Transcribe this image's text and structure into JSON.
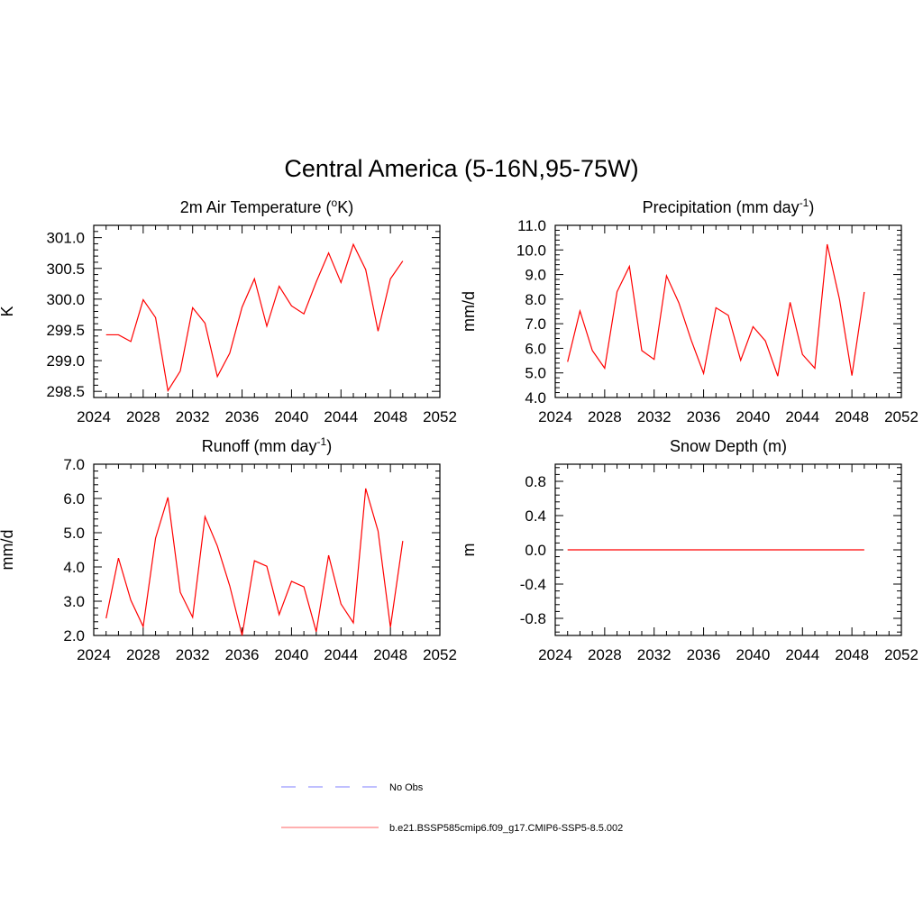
{
  "figure": {
    "title": "Central America (5-16N,95-75W)"
  },
  "legend": {
    "items": [
      {
        "label": "No Obs",
        "color": "#9999ff",
        "style": "dashed"
      },
      {
        "label": "b.e21.BSSP585cmip6.f09_g17.CMIP6-SSP5-8.5.002",
        "color": "#ff8080",
        "style": "solid"
      }
    ]
  },
  "colors": {
    "series": "#ff0000",
    "frame": "#000000"
  },
  "chart_data": [
    {
      "type": "line",
      "title": "2m Air Temperature (",
      "title_sup": "o",
      "title_after": "K)",
      "ylabel": "K",
      "xlim": [
        2024,
        2052
      ],
      "ylim": [
        298.4,
        301.2
      ],
      "xticks": [
        2024,
        2028,
        2032,
        2036,
        2040,
        2044,
        2048,
        2052
      ],
      "xtick_labels": [
        "2024",
        "2028",
        "2032",
        "2036",
        "2040",
        "2044",
        "2048",
        "2052"
      ],
      "yticks": [
        298.5,
        299.0,
        299.5,
        300.0,
        300.5,
        301.0
      ],
      "ytick_labels": [
        "298.5",
        "299.0",
        "299.5",
        "300.0",
        "300.5",
        "301.0"
      ],
      "x": [
        2025,
        2026,
        2027,
        2028,
        2029,
        2030,
        2031,
        2032,
        2033,
        2034,
        2035,
        2036,
        2037,
        2038,
        2039,
        2040,
        2041,
        2042,
        2043,
        2044,
        2045,
        2046,
        2047,
        2048,
        2049
      ],
      "series": [
        {
          "values": [
            299.42,
            299.42,
            299.31,
            299.99,
            299.7,
            298.51,
            298.83,
            299.86,
            299.61,
            298.74,
            299.12,
            299.87,
            300.33,
            299.56,
            300.21,
            299.89,
            299.76,
            300.28,
            300.75,
            300.27,
            300.89,
            300.48,
            299.48,
            300.33,
            300.62
          ]
        }
      ]
    },
    {
      "type": "line",
      "title": "Precipitation (mm day",
      "title_sup": "-1",
      "title_after": ")",
      "ylabel": "mm/d",
      "xlim": [
        2024,
        2052
      ],
      "ylim": [
        4.0,
        11.0
      ],
      "xticks": [
        2024,
        2028,
        2032,
        2036,
        2040,
        2044,
        2048,
        2052
      ],
      "xtick_labels": [
        "2024",
        "2028",
        "2032",
        "2036",
        "2040",
        "2044",
        "2048",
        "2052"
      ],
      "yticks": [
        4.0,
        5.0,
        6.0,
        7.0,
        8.0,
        9.0,
        10.0,
        11.0
      ],
      "ytick_labels": [
        "4.0",
        "5.0",
        "6.0",
        "7.0",
        "8.0",
        "9.0",
        "10.0",
        "11.0"
      ],
      "x": [
        2025,
        2026,
        2027,
        2028,
        2029,
        2030,
        2031,
        2032,
        2033,
        2034,
        2035,
        2036,
        2037,
        2038,
        2039,
        2040,
        2041,
        2042,
        2043,
        2044,
        2045,
        2046,
        2047,
        2048,
        2049
      ],
      "series": [
        {
          "values": [
            5.45,
            7.52,
            5.91,
            5.19,
            8.3,
            9.33,
            5.91,
            5.55,
            8.95,
            7.85,
            6.33,
            4.98,
            7.65,
            7.34,
            5.51,
            6.88,
            6.3,
            4.87,
            7.87,
            5.75,
            5.19,
            10.23,
            7.98,
            4.89,
            8.29
          ]
        }
      ]
    },
    {
      "type": "line",
      "title": "Runoff (mm day",
      "title_sup": "-1",
      "title_after": ")",
      "ylabel": "mm/d",
      "xlim": [
        2024,
        2052
      ],
      "ylim": [
        2.0,
        7.0
      ],
      "xticks": [
        2024,
        2028,
        2032,
        2036,
        2040,
        2044,
        2048,
        2052
      ],
      "xtick_labels": [
        "2024",
        "2028",
        "2032",
        "2036",
        "2040",
        "2044",
        "2048",
        "2052"
      ],
      "yticks": [
        2.0,
        3.0,
        4.0,
        5.0,
        6.0,
        7.0
      ],
      "ytick_labels": [
        "2.0",
        "3.0",
        "4.0",
        "5.0",
        "6.0",
        "7.0"
      ],
      "x": [
        2025,
        2026,
        2027,
        2028,
        2029,
        2030,
        2031,
        2032,
        2033,
        2034,
        2035,
        2036,
        2037,
        2038,
        2039,
        2040,
        2041,
        2042,
        2043,
        2044,
        2045,
        2046,
        2047,
        2048,
        2049
      ],
      "series": [
        {
          "values": [
            2.5,
            4.26,
            3.03,
            2.26,
            4.84,
            6.03,
            3.26,
            2.53,
            5.47,
            4.61,
            3.45,
            2.0,
            4.18,
            4.02,
            2.61,
            3.58,
            3.42,
            2.11,
            4.34,
            2.92,
            2.37,
            6.29,
            5.05,
            2.24,
            4.76
          ]
        }
      ]
    },
    {
      "type": "line",
      "title": "Snow Depth (m)",
      "title_sup": "",
      "title_after": "",
      "ylabel": "m",
      "xlim": [
        2024,
        2052
      ],
      "ylim": [
        -1.0,
        1.0
      ],
      "xticks": [
        2024,
        2028,
        2032,
        2036,
        2040,
        2044,
        2048,
        2052
      ],
      "xtick_labels": [
        "2024",
        "2028",
        "2032",
        "2036",
        "2040",
        "2044",
        "2048",
        "2052"
      ],
      "yticks": [
        -0.8,
        -0.4,
        0.0,
        0.4,
        0.8
      ],
      "ytick_labels": [
        "-0.8",
        "-0.4",
        "0.0",
        "0.4",
        "0.8"
      ],
      "x": [
        2025,
        2026,
        2027,
        2028,
        2029,
        2030,
        2031,
        2032,
        2033,
        2034,
        2035,
        2036,
        2037,
        2038,
        2039,
        2040,
        2041,
        2042,
        2043,
        2044,
        2045,
        2046,
        2047,
        2048,
        2049
      ],
      "series": [
        {
          "values": [
            0,
            0,
            0,
            0,
            0,
            0,
            0,
            0,
            0,
            0,
            0,
            0,
            0,
            0,
            0,
            0,
            0,
            0,
            0,
            0,
            0,
            0,
            0,
            0,
            0
          ]
        }
      ]
    }
  ]
}
